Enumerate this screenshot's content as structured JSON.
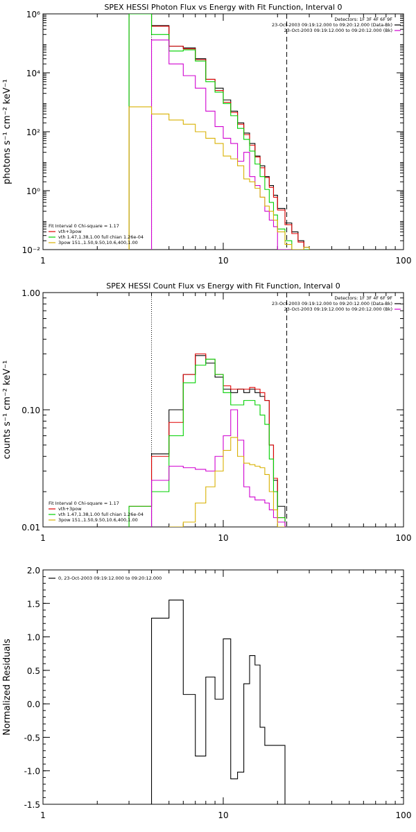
{
  "colors": {
    "bk": "#000000",
    "red": "#e00000",
    "green": "#00d000",
    "magenta": "#d000d0",
    "yellow": "#d8b000"
  },
  "chart_data": [
    {
      "type": "line",
      "title": "SPEX HESSI Photon Flux vs Energy with Fit Function, Interval 0",
      "ylabel": "photons s⁻¹ cm⁻² keV⁻¹",
      "xlabel": "",
      "xscale": "log",
      "yscale": "log",
      "xlim": [
        1,
        100
      ],
      "ylim": [
        0.01,
        1000000
      ],
      "xticks": [
        "1",
        "10",
        "100"
      ],
      "yticks": [
        {
          "v": 1000000,
          "label": "10⁶"
        },
        {
          "v": 10000,
          "label": "10⁴"
        },
        {
          "v": 100,
          "label": "10²"
        },
        {
          "v": 1,
          "label": "10⁰"
        },
        {
          "v": 0.01,
          "label": "10⁻²"
        }
      ],
      "vlines": [
        {
          "x": 4.0,
          "style": "dotted"
        },
        {
          "x": 22.5,
          "style": "dashed"
        }
      ],
      "header": [
        "Detectors: 1F 3F 4F 6F 9F",
        "23-Oct-2003 09:19:12.000 to 09:20:12.000 (Data-Bk)",
        "23-Oct-2003 09:19:12.000 to 09:20:12.000 (Bk)"
      ],
      "legend": [
        "Fit Interval 0   Chi-square = 1.17",
        "vth+3pow",
        "vth 1.47,1.38,1.00  full chian 1.26e-04",
        "3pow 151.,1.50,9.50,10.6,400,1.00"
      ],
      "edges": [
        3.0,
        4.0,
        5.0,
        6.0,
        7.0,
        8.0,
        9.0,
        10.0,
        11.0,
        12.0,
        13.0,
        14.0,
        15.0,
        16.0,
        17.0,
        18.0,
        19.0,
        20.0,
        22.0,
        24.0,
        26.0,
        28.0,
        30.0
      ],
      "series": [
        {
          "key": "data",
          "color": "bk",
          "values": [
            1000000,
            400000,
            80000,
            70000,
            30000,
            6000,
            3000,
            1200,
            500,
            200,
            90,
            40,
            15,
            7,
            3,
            1.5,
            0.7,
            0.25,
            0.08,
            0.04,
            0.02,
            0.012
          ]
        },
        {
          "key": "total",
          "color": "red",
          "values": [
            1000000,
            380000,
            80000,
            65000,
            28000,
            6000,
            2500,
            1000,
            450,
            180,
            80,
            35,
            14,
            6,
            2.8,
            1.3,
            0.6,
            0.22,
            0.07,
            0.035,
            0.018,
            0.01
          ]
        },
        {
          "key": "thermal",
          "color": "green",
          "values": [
            1000000,
            200000,
            55000,
            60000,
            25000,
            5000,
            2200,
            900,
            350,
            130,
            55,
            22,
            8,
            3,
            1.1,
            0.4,
            0.15,
            0.05,
            0.02,
            0.01,
            0.008,
            0.005
          ]
        },
        {
          "key": "background",
          "color": "magenta",
          "values": [
            null,
            130000,
            20000,
            8000,
            3000,
            500,
            150,
            60,
            40,
            10,
            20,
            3,
            1.5,
            0.6,
            0.2,
            0.1,
            0.06,
            0.008,
            0.005,
            null,
            null,
            null
          ]
        },
        {
          "key": "powerlaw",
          "color": "yellow",
          "values": [
            700,
            400,
            250,
            180,
            100,
            60,
            40,
            15,
            12,
            7,
            2.5,
            2,
            1.2,
            0.6,
            0.3,
            0.2,
            0.1,
            0.04,
            0.015,
            0.008,
            0.005,
            0.012
          ]
        }
      ]
    },
    {
      "type": "line",
      "title": "SPEX HESSI Count Flux vs Energy with Fit Function, Interval 0",
      "ylabel": "counts s⁻¹ cm⁻² keV⁻¹",
      "xlabel": "",
      "xscale": "log",
      "yscale": "log",
      "xlim": [
        1,
        100
      ],
      "ylim": [
        0.01,
        1.0
      ],
      "xticks": [
        "1",
        "10",
        "100"
      ],
      "yticks": [
        {
          "v": 1.0,
          "label": "1.00"
        },
        {
          "v": 0.1,
          "label": "0.10"
        },
        {
          "v": 0.01,
          "label": "0.01"
        }
      ],
      "vlines": [
        {
          "x": 4.0,
          "style": "dotted"
        },
        {
          "x": 22.5,
          "style": "dashed"
        }
      ],
      "header": [
        "Detectors: 1F 3F 4F 6F 9F",
        "23-Oct-2003 09:19:12.000 to 09:20:12.000 (Data-Bk)",
        "23-Oct-2003 09:19:12.000 to 09:20:12.000 (Bk)"
      ],
      "legend": [
        "Fit Interval 0   Chi-square = 1.17",
        "vth+3pow",
        "vth 1.47,1.38,1.00  full chian 1.26e-04",
        "3pow 151.,1.50,9.50,10.6,400,1.00"
      ],
      "edges": [
        3.0,
        4.0,
        5.0,
        6.0,
        7.0,
        8.0,
        9.0,
        10.0,
        11.0,
        12.0,
        13.0,
        14.0,
        15.0,
        16.0,
        17.0,
        18.0,
        19.0,
        20.0,
        22.0
      ],
      "series": [
        {
          "key": "data",
          "color": "bk",
          "values": [
            null,
            0.042,
            0.1,
            0.2,
            0.29,
            0.25,
            0.19,
            0.15,
            0.14,
            0.15,
            0.14,
            0.15,
            0.14,
            0.13,
            0.12,
            0.05,
            0.025,
            0.015
          ]
        },
        {
          "key": "total",
          "color": "red",
          "values": [
            0.015,
            0.04,
            0.078,
            0.2,
            0.3,
            0.27,
            0.2,
            0.16,
            0.15,
            0.15,
            0.15,
            0.155,
            0.15,
            0.14,
            0.12,
            0.05,
            0.026,
            0.012
          ]
        },
        {
          "key": "thermal",
          "color": "green",
          "values": [
            0.015,
            0.02,
            0.06,
            0.17,
            0.24,
            0.27,
            0.2,
            0.14,
            0.11,
            0.11,
            0.12,
            0.12,
            0.11,
            0.09,
            0.075,
            0.038,
            0.02,
            0.012
          ]
        },
        {
          "key": "background",
          "color": "magenta",
          "values": [
            null,
            0.025,
            0.033,
            0.032,
            0.031,
            0.03,
            0.04,
            0.06,
            0.1,
            0.055,
            0.022,
            0.018,
            0.017,
            0.017,
            0.016,
            0.014,
            0.012,
            0.011
          ]
        },
        {
          "key": "powerlaw",
          "color": "yellow",
          "values": [
            null,
            null,
            0.008,
            0.011,
            0.016,
            0.022,
            0.03,
            0.045,
            0.058,
            0.04,
            0.035,
            0.034,
            0.033,
            0.032,
            0.028,
            0.02,
            0.014,
            0.01
          ]
        }
      ]
    },
    {
      "type": "line",
      "title": "",
      "ylabel": "Normalized Residuals",
      "xlabel": "",
      "xscale": "log",
      "yscale": "linear",
      "xlim": [
        1,
        100
      ],
      "ylim": [
        -1.5,
        2.0
      ],
      "xticks": [
        "1",
        "10",
        "100"
      ],
      "yticks": [
        {
          "v": 2.0,
          "label": "2.0"
        },
        {
          "v": 1.5,
          "label": "1.5"
        },
        {
          "v": 1.0,
          "label": "1.0"
        },
        {
          "v": 0.5,
          "label": "0.5"
        },
        {
          "v": 0.0,
          "label": "0.0"
        },
        {
          "v": -0.5,
          "label": "-0.5"
        },
        {
          "v": -1.0,
          "label": "-1.0"
        },
        {
          "v": -1.5,
          "label": "-1.5"
        }
      ],
      "legend": [
        "0, 23-Oct-2003 09:19:12.000 to 09:20:12.000"
      ],
      "edges": [
        4.0,
        5.0,
        6.0,
        7.0,
        8.0,
        9.0,
        10.0,
        11.0,
        12.0,
        13.0,
        14.0,
        15.0,
        16.0,
        17.0,
        18.0,
        19.0,
        20.0,
        22.0
      ],
      "series": [
        {
          "key": "residuals",
          "color": "bk",
          "values": [
            1.28,
            1.55,
            0.14,
            -0.78,
            0.4,
            0.07,
            0.97,
            -1.12,
            -1.02,
            0.3,
            0.72,
            0.58,
            -0.35,
            -0.62,
            -0.62,
            -0.62,
            -0.62
          ]
        }
      ]
    }
  ]
}
